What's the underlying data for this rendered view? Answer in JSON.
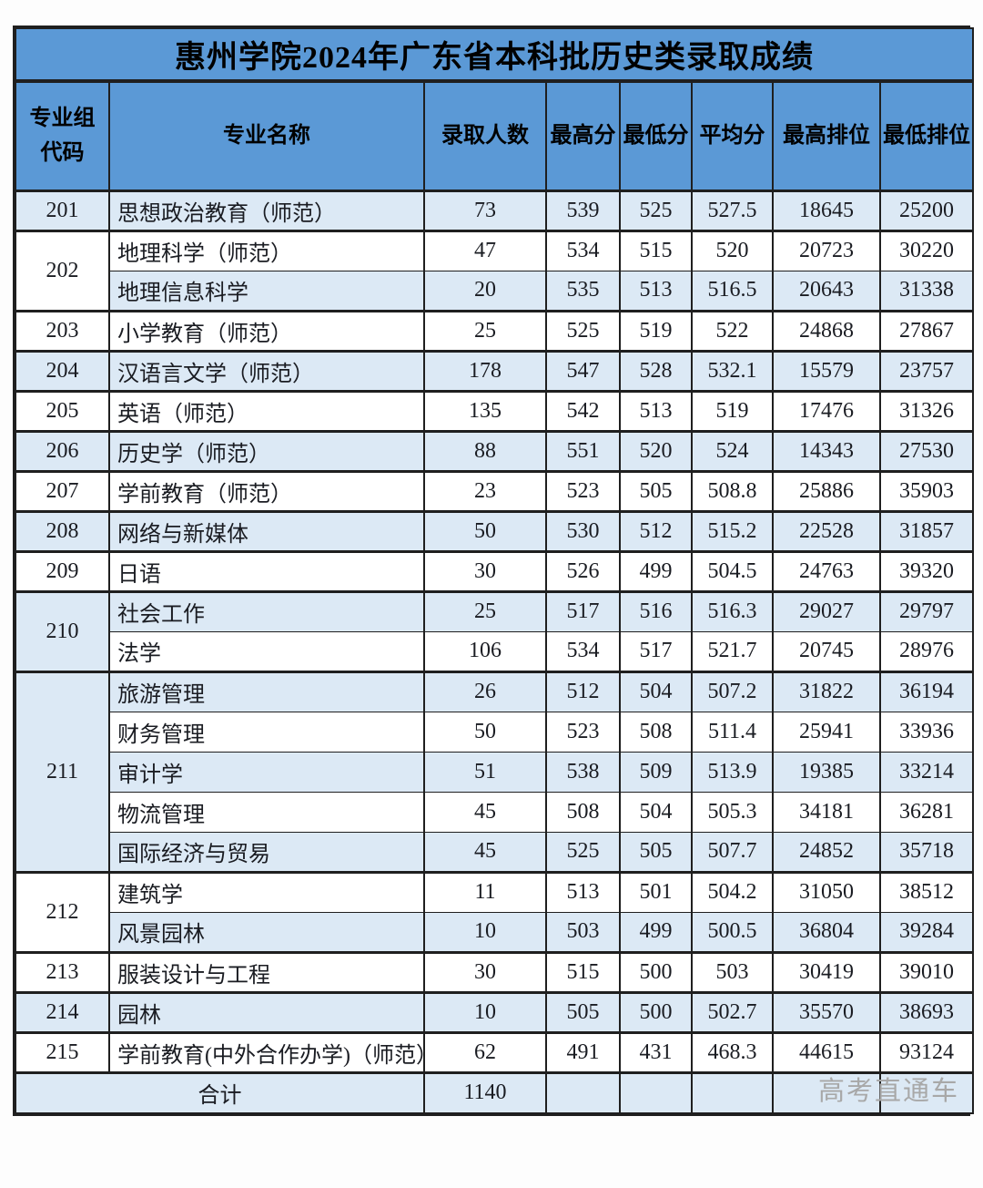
{
  "title": "惠州学院2024年广东省本科批历史类录取成绩",
  "columns": [
    "专业组\n代码",
    "专业名称",
    "录取人数",
    "最高分",
    "最低分",
    "平均分",
    "最高排位",
    "最低排位"
  ],
  "rows": [
    {
      "group": "201",
      "span": 1,
      "name": "思想政治教育（师范）",
      "admitted": "73",
      "max_score": "539",
      "min_score": "525",
      "avg_score": "527.5",
      "max_rank": "18645",
      "min_rank": "25200"
    },
    {
      "group": "202",
      "span": 2,
      "name": "地理科学（师范）",
      "admitted": "47",
      "max_score": "534",
      "min_score": "515",
      "avg_score": "520",
      "max_rank": "20723",
      "min_rank": "30220"
    },
    {
      "name": "地理信息科学",
      "admitted": "20",
      "max_score": "535",
      "min_score": "513",
      "avg_score": "516.5",
      "max_rank": "20643",
      "min_rank": "31338"
    },
    {
      "group": "203",
      "span": 1,
      "name": "小学教育（师范）",
      "admitted": "25",
      "max_score": "525",
      "min_score": "519",
      "avg_score": "522",
      "max_rank": "24868",
      "min_rank": "27867"
    },
    {
      "group": "204",
      "span": 1,
      "name": "汉语言文学（师范）",
      "admitted": "178",
      "max_score": "547",
      "min_score": "528",
      "avg_score": "532.1",
      "max_rank": "15579",
      "min_rank": "23757"
    },
    {
      "group": "205",
      "span": 1,
      "name": "英语（师范）",
      "admitted": "135",
      "max_score": "542",
      "min_score": "513",
      "avg_score": "519",
      "max_rank": "17476",
      "min_rank": "31326"
    },
    {
      "group": "206",
      "span": 1,
      "name": "历史学（师范）",
      "admitted": "88",
      "max_score": "551",
      "min_score": "520",
      "avg_score": "524",
      "max_rank": "14343",
      "min_rank": "27530"
    },
    {
      "group": "207",
      "span": 1,
      "name": "学前教育（师范）",
      "admitted": "23",
      "max_score": "523",
      "min_score": "505",
      "avg_score": "508.8",
      "max_rank": "25886",
      "min_rank": "35903"
    },
    {
      "group": "208",
      "span": 1,
      "name": "网络与新媒体",
      "admitted": "50",
      "max_score": "530",
      "min_score": "512",
      "avg_score": "515.2",
      "max_rank": "22528",
      "min_rank": "31857"
    },
    {
      "group": "209",
      "span": 1,
      "name": "日语",
      "admitted": "30",
      "max_score": "526",
      "min_score": "499",
      "avg_score": "504.5",
      "max_rank": "24763",
      "min_rank": "39320"
    },
    {
      "group": "210",
      "span": 2,
      "name": "社会工作",
      "admitted": "25",
      "max_score": "517",
      "min_score": "516",
      "avg_score": "516.3",
      "max_rank": "29027",
      "min_rank": "29797"
    },
    {
      "name": "法学",
      "admitted": "106",
      "max_score": "534",
      "min_score": "517",
      "avg_score": "521.7",
      "max_rank": "20745",
      "min_rank": "28976"
    },
    {
      "group": "211",
      "span": 5,
      "name": "旅游管理",
      "admitted": "26",
      "max_score": "512",
      "min_score": "504",
      "avg_score": "507.2",
      "max_rank": "31822",
      "min_rank": "36194"
    },
    {
      "name": "财务管理",
      "admitted": "50",
      "max_score": "523",
      "min_score": "508",
      "avg_score": "511.4",
      "max_rank": "25941",
      "min_rank": "33936"
    },
    {
      "name": "审计学",
      "admitted": "51",
      "max_score": "538",
      "min_score": "509",
      "avg_score": "513.9",
      "max_rank": "19385",
      "min_rank": "33214"
    },
    {
      "name": "物流管理",
      "admitted": "45",
      "max_score": "508",
      "min_score": "504",
      "avg_score": "505.3",
      "max_rank": "34181",
      "min_rank": "36281"
    },
    {
      "name": "国际经济与贸易",
      "admitted": "45",
      "max_score": "525",
      "min_score": "505",
      "avg_score": "507.7",
      "max_rank": "24852",
      "min_rank": "35718"
    },
    {
      "group": "212",
      "span": 2,
      "name": "建筑学",
      "admitted": "11",
      "max_score": "513",
      "min_score": "501",
      "avg_score": "504.2",
      "max_rank": "31050",
      "min_rank": "38512"
    },
    {
      "name": "风景园林",
      "admitted": "10",
      "max_score": "503",
      "min_score": "499",
      "avg_score": "500.5",
      "max_rank": "36804",
      "min_rank": "39284"
    },
    {
      "group": "213",
      "span": 1,
      "name": "服装设计与工程",
      "admitted": "30",
      "max_score": "515",
      "min_score": "500",
      "avg_score": "503",
      "max_rank": "30419",
      "min_rank": "39010"
    },
    {
      "group": "214",
      "span": 1,
      "name": "园林",
      "admitted": "10",
      "max_score": "505",
      "min_score": "500",
      "avg_score": "502.7",
      "max_rank": "35570",
      "min_rank": "38693"
    },
    {
      "group": "215",
      "span": 1,
      "name": "学前教育(中外合作办学)（师范）",
      "admitted": "62",
      "max_score": "491",
      "min_score": "431",
      "avg_score": "468.3",
      "max_rank": "44615",
      "min_rank": "93124"
    }
  ],
  "footer": {
    "label": "合计",
    "admitted_total": "1140"
  },
  "watermark": "高考直通车",
  "colors": {
    "header_blue": "#5B99D6",
    "row_blue": "#DCE9F5",
    "row_white": "#FFFFFF",
    "border": "#1F1F1F",
    "watermark_gray": "#A8A8A8"
  }
}
